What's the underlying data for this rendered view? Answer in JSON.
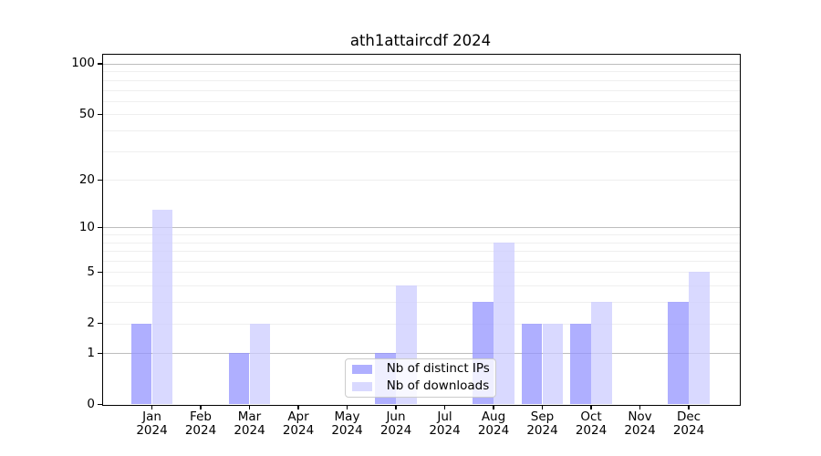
{
  "chart_data": {
    "type": "bar",
    "title": "ath1attaircdf 2024",
    "x": {
      "months": [
        "Jan",
        "Feb",
        "Mar",
        "Apr",
        "May",
        "Jun",
        "Jul",
        "Aug",
        "Sep",
        "Oct",
        "Nov",
        "Dec"
      ],
      "year": "2024"
    },
    "series": [
      {
        "name": "Nb of distinct IPs",
        "color": "#9494ff",
        "values": [
          2,
          0,
          1,
          0,
          0,
          1,
          0,
          3,
          2,
          2,
          0,
          3
        ]
      },
      {
        "name": "Nb of downloads",
        "color": "#ccccff",
        "values": [
          13,
          0,
          2,
          0,
          0,
          4,
          0,
          8,
          2,
          3,
          0,
          5
        ]
      }
    ],
    "y_axis": {
      "scale": "log1p",
      "tick_values": [
        0,
        1,
        2,
        5,
        10,
        20,
        50,
        100
      ],
      "major_gridlines": [
        1,
        10,
        100
      ],
      "minor_gridlines": [
        2,
        3,
        4,
        5,
        6,
        7,
        8,
        9,
        20,
        30,
        40,
        50,
        60,
        70,
        80,
        90
      ],
      "range_top_value": 113
    },
    "bar_opacity": 0.75,
    "legend_position": "lower center",
    "grid": true,
    "colors": {
      "major_grid": "#bdbdbd",
      "minor_grid": "#efefef",
      "axis": "#000000",
      "text": "#000000"
    }
  }
}
